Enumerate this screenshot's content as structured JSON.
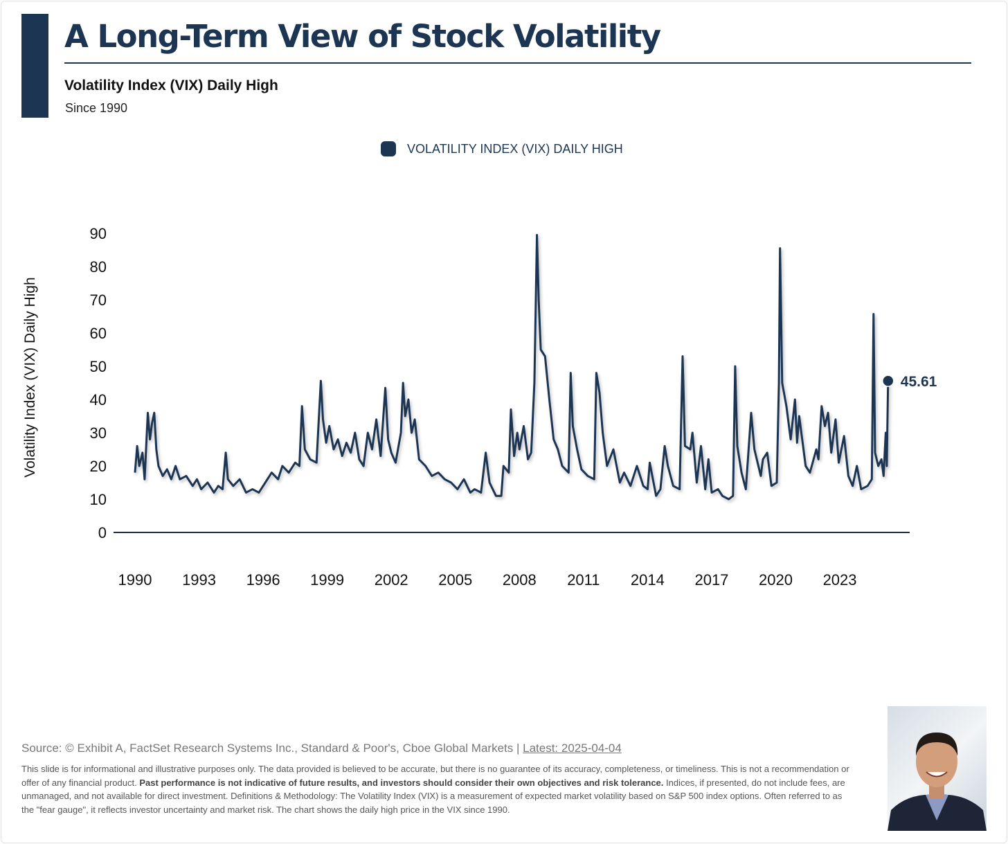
{
  "header": {
    "title": "A Long-Term View of Stock Volatility",
    "subtitle": "Volatility Index (VIX) Daily High",
    "since": "Since 1990"
  },
  "colors": {
    "series": "#1c3553",
    "axis": "#1b2a3f"
  },
  "chart_data": {
    "type": "line",
    "title": "A Long-Term View of Stock Volatility",
    "legend": [
      "VOLATILITY INDEX (VIX) DAILY HIGH"
    ],
    "legend_position": "top-center",
    "ylabel": "Volatility Index (VIX) Daily High",
    "xlabel": "",
    "ylim": [
      0,
      90
    ],
    "xlim": [
      1990,
      2025.5
    ],
    "yticks": [
      0,
      10,
      20,
      30,
      40,
      50,
      60,
      70,
      80,
      90
    ],
    "xticks": [
      1990,
      1993,
      1996,
      1999,
      2002,
      2005,
      2008,
      2011,
      2014,
      2017,
      2020,
      2023
    ],
    "grid": false,
    "last_label": "45.61",
    "series": [
      {
        "name": "VOLATILITY INDEX (VIX) DAILY HIGH",
        "points": [
          [
            1990.0,
            18
          ],
          [
            1990.1,
            26
          ],
          [
            1990.2,
            20
          ],
          [
            1990.35,
            24
          ],
          [
            1990.45,
            16
          ],
          [
            1990.6,
            36
          ],
          [
            1990.7,
            28
          ],
          [
            1990.8,
            33
          ],
          [
            1990.9,
            36
          ],
          [
            1991.0,
            25
          ],
          [
            1991.1,
            20
          ],
          [
            1991.3,
            17
          ],
          [
            1991.5,
            19
          ],
          [
            1991.7,
            16
          ],
          [
            1991.9,
            20
          ],
          [
            1992.1,
            16
          ],
          [
            1992.4,
            17
          ],
          [
            1992.7,
            14
          ],
          [
            1992.9,
            16
          ],
          [
            1993.1,
            13
          ],
          [
            1993.4,
            15
          ],
          [
            1993.7,
            12
          ],
          [
            1993.9,
            14
          ],
          [
            1994.1,
            13
          ],
          [
            1994.25,
            24
          ],
          [
            1994.35,
            16
          ],
          [
            1994.6,
            14
          ],
          [
            1994.9,
            16
          ],
          [
            1995.2,
            12
          ],
          [
            1995.5,
            13
          ],
          [
            1995.8,
            12
          ],
          [
            1996.1,
            15
          ],
          [
            1996.4,
            18
          ],
          [
            1996.7,
            16
          ],
          [
            1996.9,
            20
          ],
          [
            1997.2,
            18
          ],
          [
            1997.5,
            21
          ],
          [
            1997.7,
            20
          ],
          [
            1997.82,
            38
          ],
          [
            1997.95,
            25
          ],
          [
            1998.2,
            22
          ],
          [
            1998.5,
            21
          ],
          [
            1998.7,
            45.6
          ],
          [
            1998.8,
            34
          ],
          [
            1998.95,
            27
          ],
          [
            1999.1,
            32
          ],
          [
            1999.3,
            25
          ],
          [
            1999.5,
            28
          ],
          [
            1999.7,
            23
          ],
          [
            1999.9,
            27
          ],
          [
            2000.1,
            24
          ],
          [
            2000.3,
            30
          ],
          [
            2000.5,
            22
          ],
          [
            2000.7,
            20
          ],
          [
            2000.9,
            30
          ],
          [
            2001.1,
            25
          ],
          [
            2001.3,
            34
          ],
          [
            2001.5,
            23
          ],
          [
            2001.72,
            43.5
          ],
          [
            2001.85,
            28
          ],
          [
            2002.0,
            24
          ],
          [
            2002.2,
            21
          ],
          [
            2002.45,
            30
          ],
          [
            2002.55,
            45
          ],
          [
            2002.65,
            35
          ],
          [
            2002.8,
            40
          ],
          [
            2002.95,
            30
          ],
          [
            2003.1,
            34
          ],
          [
            2003.3,
            22
          ],
          [
            2003.6,
            20
          ],
          [
            2003.9,
            17
          ],
          [
            2004.2,
            18
          ],
          [
            2004.5,
            16
          ],
          [
            2004.8,
            15
          ],
          [
            2005.1,
            13
          ],
          [
            2005.4,
            16
          ],
          [
            2005.7,
            12
          ],
          [
            2005.9,
            13
          ],
          [
            2006.2,
            12
          ],
          [
            2006.42,
            24
          ],
          [
            2006.6,
            15
          ],
          [
            2006.9,
            11
          ],
          [
            2007.15,
            11
          ],
          [
            2007.25,
            20
          ],
          [
            2007.5,
            18
          ],
          [
            2007.6,
            37
          ],
          [
            2007.75,
            23
          ],
          [
            2007.9,
            30
          ],
          [
            2008.0,
            25
          ],
          [
            2008.2,
            32
          ],
          [
            2008.4,
            22
          ],
          [
            2008.55,
            24
          ],
          [
            2008.7,
            45
          ],
          [
            2008.82,
            89.5
          ],
          [
            2008.9,
            70
          ],
          [
            2009.0,
            55
          ],
          [
            2009.2,
            53
          ],
          [
            2009.4,
            40
          ],
          [
            2009.6,
            28
          ],
          [
            2009.8,
            25
          ],
          [
            2010.0,
            20
          ],
          [
            2010.3,
            18
          ],
          [
            2010.4,
            48
          ],
          [
            2010.5,
            32
          ],
          [
            2010.7,
            25
          ],
          [
            2010.9,
            19
          ],
          [
            2011.2,
            17
          ],
          [
            2011.5,
            16
          ],
          [
            2011.6,
            48
          ],
          [
            2011.75,
            42
          ],
          [
            2011.9,
            30
          ],
          [
            2012.1,
            20
          ],
          [
            2012.4,
            25
          ],
          [
            2012.7,
            15
          ],
          [
            2012.9,
            18
          ],
          [
            2013.2,
            14
          ],
          [
            2013.5,
            20
          ],
          [
            2013.8,
            14
          ],
          [
            2014.0,
            13
          ],
          [
            2014.1,
            21
          ],
          [
            2014.4,
            11
          ],
          [
            2014.6,
            13
          ],
          [
            2014.8,
            26
          ],
          [
            2014.95,
            20
          ],
          [
            2015.2,
            14
          ],
          [
            2015.5,
            13
          ],
          [
            2015.64,
            53
          ],
          [
            2015.75,
            26
          ],
          [
            2016.0,
            25
          ],
          [
            2016.1,
            30
          ],
          [
            2016.3,
            15
          ],
          [
            2016.5,
            26
          ],
          [
            2016.7,
            13
          ],
          [
            2016.85,
            22
          ],
          [
            2017.0,
            12
          ],
          [
            2017.3,
            13
          ],
          [
            2017.5,
            11
          ],
          [
            2017.8,
            10
          ],
          [
            2018.0,
            11
          ],
          [
            2018.1,
            50
          ],
          [
            2018.2,
            26
          ],
          [
            2018.4,
            18
          ],
          [
            2018.6,
            13
          ],
          [
            2018.85,
            36
          ],
          [
            2019.0,
            25
          ],
          [
            2019.3,
            17
          ],
          [
            2019.4,
            22
          ],
          [
            2019.6,
            24
          ],
          [
            2019.8,
            14
          ],
          [
            2020.05,
            15
          ],
          [
            2020.15,
            45
          ],
          [
            2020.2,
            85.5
          ],
          [
            2020.3,
            45
          ],
          [
            2020.5,
            38
          ],
          [
            2020.7,
            28
          ],
          [
            2020.9,
            40
          ],
          [
            2021.0,
            27
          ],
          [
            2021.1,
            35
          ],
          [
            2021.4,
            20
          ],
          [
            2021.6,
            18
          ],
          [
            2021.9,
            25
          ],
          [
            2022.0,
            22
          ],
          [
            2022.15,
            38
          ],
          [
            2022.3,
            32
          ],
          [
            2022.45,
            36
          ],
          [
            2022.6,
            24
          ],
          [
            2022.8,
            34
          ],
          [
            2022.95,
            21
          ],
          [
            2023.2,
            29
          ],
          [
            2023.4,
            17
          ],
          [
            2023.6,
            14
          ],
          [
            2023.8,
            20
          ],
          [
            2024.0,
            13
          ],
          [
            2024.3,
            14
          ],
          [
            2024.5,
            16
          ],
          [
            2024.58,
            65.7
          ],
          [
            2024.65,
            24
          ],
          [
            2024.8,
            20
          ],
          [
            2024.95,
            22
          ],
          [
            2025.05,
            17
          ],
          [
            2025.15,
            30
          ],
          [
            2025.2,
            20
          ],
          [
            2025.26,
            45.61
          ]
        ]
      }
    ]
  },
  "footer": {
    "source": "Source: © Exhibit A, FactSet Research Systems Inc., Standard & Poor's, Cboe Global Markets | ",
    "latest": "Latest: 2025-04-04",
    "disclaimer_1": "This slide is for informational and illustrative purposes only. The data provided is believed to be accurate, but there is no guarantee of its accuracy, completeness, or timeliness. This is not a recommendation or offer of any financial product. ",
    "disclaimer_bold": "Past performance is not indicative of future results, and investors should consider their own objectives and risk tolerance.",
    "disclaimer_2": " Indices, if presented, do not include fees, are unmanaged, and not available for direct investment. Definitions & Methodology: The Volatility Index (VIX) is a measurement of expected market volatility based on S&P 500 index options. Often referred to as the \"fear gauge\", it reflects investor uncertainty and market risk. The chart shows the daily high price in the VIX since 1990."
  }
}
